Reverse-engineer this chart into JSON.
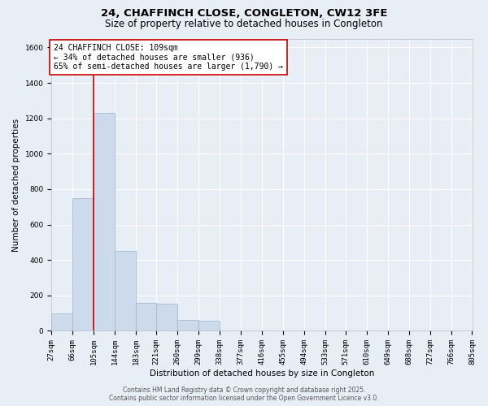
{
  "title_line1": "24, CHAFFINCH CLOSE, CONGLETON, CW12 3FE",
  "title_line2": "Size of property relative to detached houses in Congleton",
  "xlabel": "Distribution of detached houses by size in Congleton",
  "ylabel": "Number of detached properties",
  "bar_color": "#ccdaeb",
  "bar_edge_color": "#9ab5d0",
  "bg_color": "#e8eef6",
  "grid_color": "#ffffff",
  "bins": [
    27,
    66,
    105,
    144,
    183,
    221,
    260,
    299,
    338,
    377,
    416,
    455,
    494,
    533,
    571,
    610,
    649,
    688,
    727,
    766,
    805
  ],
  "bin_labels": [
    "27sqm",
    "66sqm",
    "105sqm",
    "144sqm",
    "183sqm",
    "221sqm",
    "260sqm",
    "299sqm",
    "338sqm",
    "377sqm",
    "416sqm",
    "455sqm",
    "494sqm",
    "533sqm",
    "571sqm",
    "610sqm",
    "649sqm",
    "688sqm",
    "727sqm",
    "766sqm",
    "805sqm"
  ],
  "values": [
    100,
    750,
    1230,
    450,
    160,
    155,
    60,
    55,
    0,
    0,
    0,
    0,
    0,
    0,
    0,
    0,
    0,
    0,
    0,
    0
  ],
  "ylim": [
    0,
    1650
  ],
  "yticks": [
    0,
    200,
    400,
    600,
    800,
    1000,
    1200,
    1400,
    1600
  ],
  "vline_x": 105,
  "vline_color": "#cc0000",
  "annotation_text": "24 CHAFFINCH CLOSE: 109sqm\n← 34% of detached houses are smaller (936)\n65% of semi-detached houses are larger (1,790) →",
  "annotation_box_color": "#ffffff",
  "annotation_box_edge": "#cc0000",
  "footer_line1": "Contains HM Land Registry data © Crown copyright and database right 2025.",
  "footer_line2": "Contains public sector information licensed under the Open Government Licence v3.0.",
  "title_fontsize": 9.5,
  "subtitle_fontsize": 8.5,
  "axis_label_fontsize": 7.5,
  "tick_fontsize": 6.5,
  "annotation_fontsize": 7,
  "footer_fontsize": 5.5,
  "ylabel_fontsize": 7.5
}
